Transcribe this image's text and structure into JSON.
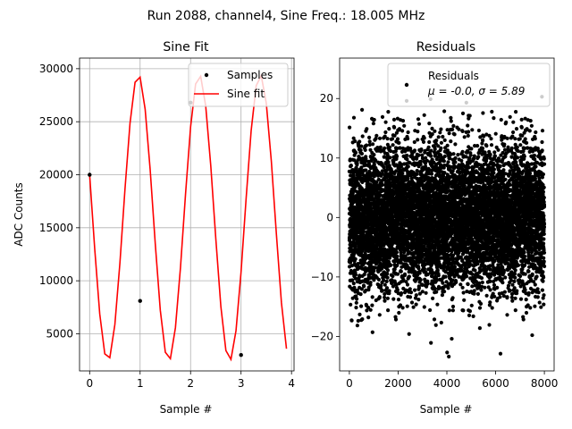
{
  "figure": {
    "suptitle": "Run 2088, channel4, Sine Freq.: 18.005 MHz"
  },
  "chart_data": [
    {
      "type": "line",
      "title": "Sine Fit",
      "xlabel": "Sample #",
      "ylabel": "ADC Counts",
      "xlim": [
        -0.2,
        4.05
      ],
      "ylim": [
        1500,
        31000
      ],
      "xticks": [
        0,
        1,
        2,
        3,
        4
      ],
      "yticks": [
        5000,
        10000,
        15000,
        20000,
        25000,
        30000
      ],
      "xtick_labels": [
        "0",
        "1",
        "2",
        "3",
        "4"
      ],
      "ytick_labels": [
        "5000",
        "10000",
        "15000",
        "20000",
        "25000",
        "30000"
      ],
      "grid": true,
      "legend": {
        "position": "top-right",
        "entries": [
          "Samples",
          "Sine fit"
        ]
      },
      "series": [
        {
          "name": "Samples",
          "kind": "scatter",
          "color": "#000000",
          "x": [
            0,
            1,
            2,
            3
          ],
          "y": [
            20000,
            8100,
            26800,
            3000
          ]
        },
        {
          "name": "Sine fit",
          "kind": "line",
          "color": "#ff0000",
          "fit": {
            "offset": 15950,
            "amplitude": 13500,
            "period": 1.2065,
            "phase_sample": 0,
            "phase_value": 20000,
            "rising": false
          },
          "x_range": [
            0,
            3.9
          ]
        }
      ]
    },
    {
      "type": "scatter",
      "title": "Residuals",
      "xlabel": "Sample #",
      "ylabel": "",
      "xlim": [
        -400,
        8400
      ],
      "ylim": [
        -25.8,
        26.8
      ],
      "xticks": [
        0,
        2000,
        4000,
        6000,
        8000
      ],
      "yticks": [
        -20,
        -10,
        0,
        10,
        20
      ],
      "xtick_labels": [
        "0",
        "2000",
        "4000",
        "6000",
        "8000"
      ],
      "ytick_labels": [
        "−20",
        "−10",
        "0",
        "10",
        "20"
      ],
      "grid": false,
      "legend": {
        "position": "top-right",
        "entries": [
          "Residuals"
        ],
        "stats_line": "μ = -0.0, σ = 5.89"
      },
      "series": [
        {
          "name": "Residuals",
          "kind": "scatter",
          "color": "#000000",
          "n_points": 8000,
          "mean": -0.0,
          "std": 5.89,
          "extremes": [
            {
              "x": 2350,
              "y": 22.3
            },
            {
              "x": 4080,
              "y": -23.4
            },
            {
              "x": 4010,
              "y": -22.7
            },
            {
              "x": 6200,
              "y": -22.9
            },
            {
              "x": 3330,
              "y": 19.9
            },
            {
              "x": 7900,
              "y": 20.3
            },
            {
              "x": 4800,
              "y": 19.3
            },
            {
              "x": 520,
              "y": 18.1
            },
            {
              "x": 4200,
              "y": -20.4
            },
            {
              "x": 2450,
              "y": -19.6
            },
            {
              "x": 7500,
              "y": -19.8
            },
            {
              "x": 2350,
              "y": 19.6
            },
            {
              "x": 530,
              "y": -17.1
            },
            {
              "x": 950,
              "y": -19.3
            },
            {
              "x": 3550,
              "y": -18.1
            }
          ]
        }
      ]
    }
  ]
}
